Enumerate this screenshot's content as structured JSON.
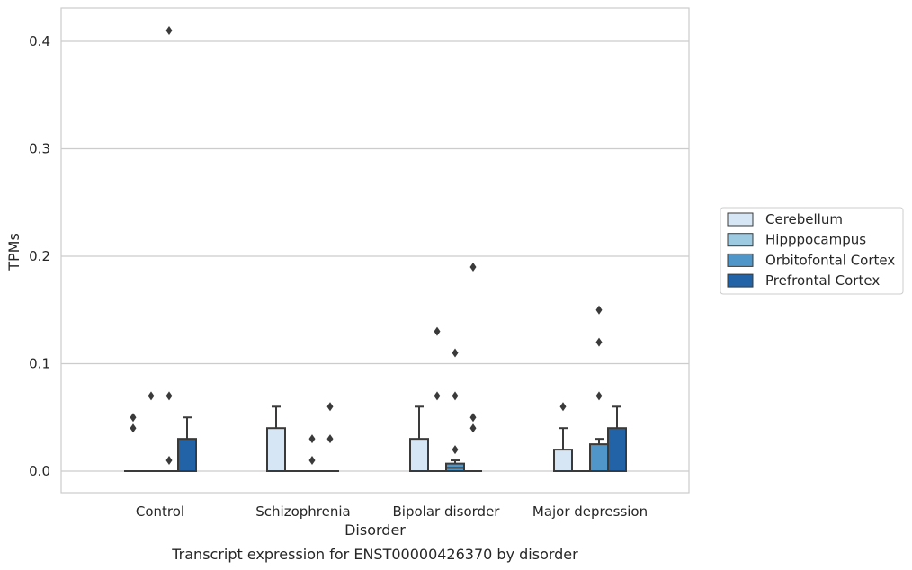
{
  "chart_data": {
    "type": "box",
    "caption": "Transcript expression for ENST00000426370 by disorder",
    "xlabel": "Disorder",
    "ylabel": "TPMs",
    "ylim": [
      -0.02,
      0.43
    ],
    "yticks": [
      0.0,
      0.1,
      0.2,
      0.3,
      0.4
    ],
    "ytick_labels": [
      "0.0",
      "0.1",
      "0.2",
      "0.3",
      "0.4"
    ],
    "grid": "horizontal",
    "legend_position": "right",
    "categories": [
      "Control",
      "Schizophrenia",
      "Bipolar disorder",
      "Major depression"
    ],
    "series": [
      {
        "name": "Cerebellum",
        "color": "#d6e6f4",
        "boxes": [
          {
            "q1": 0,
            "median": 0,
            "q3": 0,
            "whisker_low": 0,
            "whisker_high": 0,
            "outliers": [
              0.04,
              0.05
            ]
          },
          {
            "q1": 0,
            "median": 0,
            "q3": 0.04,
            "whisker_low": 0,
            "whisker_high": 0.06,
            "outliers": []
          },
          {
            "q1": 0,
            "median": 0,
            "q3": 0.03,
            "whisker_low": 0,
            "whisker_high": 0.06,
            "outliers": []
          },
          {
            "q1": 0,
            "median": 0,
            "q3": 0.02,
            "whisker_low": 0,
            "whisker_high": 0.04,
            "outliers": [
              0.06
            ]
          }
        ]
      },
      {
        "name": "Hipppocampus",
        "color": "#9dc9e1",
        "boxes": [
          {
            "q1": 0,
            "median": 0,
            "q3": 0,
            "whisker_low": 0,
            "whisker_high": 0,
            "outliers": [
              0.07
            ]
          },
          {
            "q1": 0,
            "median": 0,
            "q3": 0,
            "whisker_low": 0,
            "whisker_high": 0,
            "outliers": []
          },
          {
            "q1": 0,
            "median": 0,
            "q3": 0,
            "whisker_low": 0,
            "whisker_high": 0,
            "outliers": [
              0.07,
              0.13
            ]
          },
          {
            "q1": 0,
            "median": 0,
            "q3": 0,
            "whisker_low": 0,
            "whisker_high": 0,
            "outliers": []
          }
        ]
      },
      {
        "name": "Orbitofontal Cortex",
        "color": "#5096c8",
        "boxes": [
          {
            "q1": 0,
            "median": 0,
            "q3": 0,
            "whisker_low": 0,
            "whisker_high": 0,
            "outliers": [
              0.01,
              0.07,
              0.41
            ]
          },
          {
            "q1": 0,
            "median": 0,
            "q3": 0,
            "whisker_low": 0,
            "whisker_high": 0,
            "outliers": [
              0.01,
              0.03
            ]
          },
          {
            "q1": 0,
            "median": 0.003,
            "q3": 0.007,
            "whisker_low": 0,
            "whisker_high": 0.01,
            "outliers": [
              0.02,
              0.07,
              0.11
            ]
          },
          {
            "q1": 0,
            "median": 0,
            "q3": 0.025,
            "whisker_low": 0,
            "whisker_high": 0.03,
            "outliers": [
              0.07,
              0.12,
              0.15
            ]
          }
        ]
      },
      {
        "name": "Prefrontal Cortex",
        "color": "#2262a6",
        "boxes": [
          {
            "q1": 0,
            "median": 0,
            "q3": 0.03,
            "whisker_low": 0,
            "whisker_high": 0.05,
            "outliers": []
          },
          {
            "q1": 0,
            "median": 0,
            "q3": 0,
            "whisker_low": 0,
            "whisker_high": 0,
            "outliers": [
              0.03,
              0.06
            ]
          },
          {
            "q1": 0,
            "median": 0,
            "q3": 0,
            "whisker_low": 0,
            "whisker_high": 0,
            "outliers": [
              0.04,
              0.05,
              0.19
            ]
          },
          {
            "q1": 0,
            "median": 0,
            "q3": 0.04,
            "whisker_low": 0,
            "whisker_high": 0.06,
            "outliers": []
          }
        ]
      }
    ]
  }
}
